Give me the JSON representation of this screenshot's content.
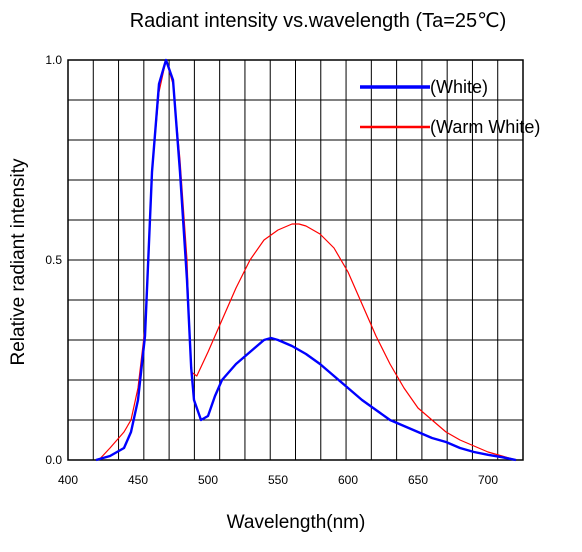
{
  "chart_data": {
    "type": "line",
    "title": "Radiant intensity vs.wavelength (Ta=25℃)",
    "xlabel": "Wavelength(nm)",
    "ylabel": "Relative radiant intensity",
    "xlim": [
      400,
      725
    ],
    "ylim": [
      0,
      1.0
    ],
    "x_ticks": [
      400,
      450,
      500,
      550,
      600,
      650,
      700
    ],
    "y_ticks": [
      0.0,
      0.5,
      1.0
    ],
    "x_tick_labels": [
      "400",
      "450",
      "500",
      "550",
      "600",
      "650",
      "700"
    ],
    "y_tick_labels": [
      "0.0",
      "0.5",
      "1.0"
    ],
    "grid": true,
    "legend_position": "top-right",
    "series": [
      {
        "name": "(Warm White)",
        "color": "#ff0000",
        "points": [
          [
            422,
            0.0
          ],
          [
            430,
            0.03
          ],
          [
            440,
            0.07
          ],
          [
            445,
            0.1
          ],
          [
            450,
            0.18
          ],
          [
            455,
            0.33
          ],
          [
            460,
            0.72
          ],
          [
            465,
            0.92
          ],
          [
            470,
            1.0
          ],
          [
            475,
            0.94
          ],
          [
            480,
            0.75
          ],
          [
            485,
            0.5
          ],
          [
            487,
            0.3
          ],
          [
            488,
            0.22
          ],
          [
            492,
            0.21
          ],
          [
            500,
            0.27
          ],
          [
            510,
            0.35
          ],
          [
            520,
            0.43
          ],
          [
            530,
            0.5
          ],
          [
            540,
            0.55
          ],
          [
            550,
            0.575
          ],
          [
            560,
            0.59
          ],
          [
            565,
            0.59
          ],
          [
            570,
            0.585
          ],
          [
            580,
            0.565
          ],
          [
            590,
            0.53
          ],
          [
            600,
            0.47
          ],
          [
            610,
            0.39
          ],
          [
            620,
            0.31
          ],
          [
            630,
            0.24
          ],
          [
            640,
            0.18
          ],
          [
            650,
            0.13
          ],
          [
            660,
            0.1
          ],
          [
            670,
            0.07
          ],
          [
            680,
            0.05
          ],
          [
            690,
            0.035
          ],
          [
            700,
            0.02
          ],
          [
            710,
            0.01
          ],
          [
            720,
            0.0
          ]
        ]
      },
      {
        "name": "(White)",
        "color": "#0000ff",
        "points": [
          [
            420,
            0.0
          ],
          [
            430,
            0.01
          ],
          [
            440,
            0.03
          ],
          [
            445,
            0.07
          ],
          [
            450,
            0.15
          ],
          [
            455,
            0.31
          ],
          [
            460,
            0.72
          ],
          [
            465,
            0.94
          ],
          [
            470,
            1.0
          ],
          [
            475,
            0.95
          ],
          [
            480,
            0.72
          ],
          [
            485,
            0.45
          ],
          [
            488,
            0.23
          ],
          [
            490,
            0.15
          ],
          [
            495,
            0.1
          ],
          [
            500,
            0.11
          ],
          [
            505,
            0.16
          ],
          [
            510,
            0.2
          ],
          [
            520,
            0.24
          ],
          [
            530,
            0.27
          ],
          [
            540,
            0.3
          ],
          [
            545,
            0.305
          ],
          [
            550,
            0.3
          ],
          [
            560,
            0.285
          ],
          [
            570,
            0.265
          ],
          [
            580,
            0.24
          ],
          [
            590,
            0.21
          ],
          [
            600,
            0.18
          ],
          [
            610,
            0.15
          ],
          [
            620,
            0.125
          ],
          [
            630,
            0.1
          ],
          [
            640,
            0.085
          ],
          [
            650,
            0.07
          ],
          [
            660,
            0.055
          ],
          [
            670,
            0.045
          ],
          [
            680,
            0.03
          ],
          [
            690,
            0.02
          ],
          [
            700,
            0.013
          ],
          [
            710,
            0.007
          ],
          [
            720,
            0.0
          ]
        ]
      }
    ]
  }
}
